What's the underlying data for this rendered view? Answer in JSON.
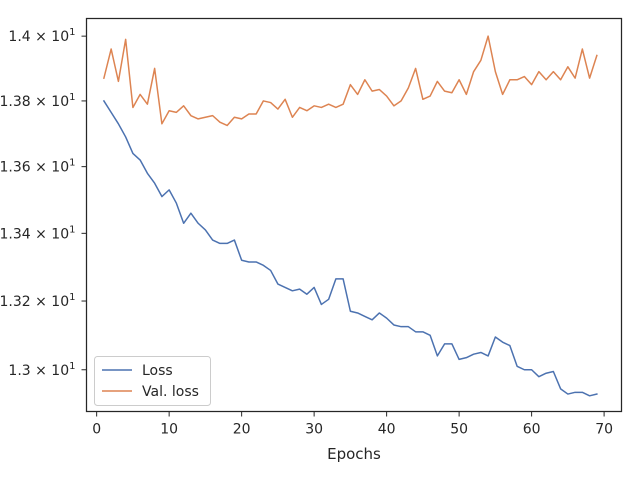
{
  "chart_data": {
    "type": "line",
    "title": "",
    "xlabel": "Epochs",
    "ylabel": "",
    "xlim": [
      -1.4,
      72.4
    ],
    "ylim": [
      12.88,
      14.055
    ],
    "x_ticks": [
      0,
      10,
      20,
      30,
      40,
      50,
      60,
      70
    ],
    "y_ticks": [
      {
        "value": 13.0,
        "mantissa": "1.3",
        "exponent": "1"
      },
      {
        "value": 13.2,
        "mantissa": "1.32",
        "exponent": "1"
      },
      {
        "value": 13.4,
        "mantissa": "1.34",
        "exponent": "1"
      },
      {
        "value": 13.6,
        "mantissa": "1.36",
        "exponent": "1"
      },
      {
        "value": 13.8,
        "mantissa": "1.38",
        "exponent": "1"
      },
      {
        "value": 14.0,
        "mantissa": "1.4",
        "exponent": "1"
      }
    ],
    "y_scale": "log",
    "grid": false,
    "legend_position": "lower-left",
    "series": [
      {
        "name": "Loss",
        "color": "#4c72b0",
        "x": [
          1,
          2,
          3,
          4,
          5,
          6,
          7,
          8,
          9,
          10,
          11,
          12,
          13,
          14,
          15,
          16,
          17,
          18,
          19,
          20,
          21,
          22,
          23,
          24,
          25,
          26,
          27,
          28,
          29,
          30,
          31,
          32,
          33,
          34,
          35,
          36,
          37,
          38,
          39,
          40,
          41,
          42,
          43,
          44,
          45,
          46,
          47,
          48,
          49,
          50,
          51,
          52,
          53,
          54,
          55,
          56,
          57,
          58,
          59,
          60,
          61,
          62,
          63,
          64,
          65,
          66,
          67,
          68,
          69
        ],
        "values": [
          13.8,
          13.765,
          13.73,
          13.69,
          13.64,
          13.62,
          13.58,
          13.55,
          13.51,
          13.53,
          13.49,
          13.43,
          13.46,
          13.43,
          13.41,
          13.38,
          13.37,
          13.37,
          13.38,
          13.32,
          13.315,
          13.315,
          13.305,
          13.29,
          13.25,
          13.24,
          13.23,
          13.235,
          13.22,
          13.24,
          13.19,
          13.205,
          13.265,
          13.265,
          13.17,
          13.165,
          13.155,
          13.145,
          13.165,
          13.15,
          13.13,
          13.125,
          13.125,
          13.11,
          13.11,
          13.1,
          13.04,
          13.075,
          13.075,
          13.03,
          13.035,
          13.045,
          13.05,
          13.04,
          13.095,
          13.08,
          13.07,
          13.01,
          13.0,
          13.0,
          12.98,
          12.99,
          12.995,
          12.945,
          12.93,
          12.935,
          12.935,
          12.925,
          12.93
        ]
      },
      {
        "name": "Val. loss",
        "color": "#dd8452",
        "x": [
          1,
          2,
          3,
          4,
          5,
          6,
          7,
          8,
          9,
          10,
          11,
          12,
          13,
          14,
          15,
          16,
          17,
          18,
          19,
          20,
          21,
          22,
          23,
          24,
          25,
          26,
          27,
          28,
          29,
          30,
          31,
          32,
          33,
          34,
          35,
          36,
          37,
          38,
          39,
          40,
          41,
          42,
          43,
          44,
          45,
          46,
          47,
          48,
          49,
          50,
          51,
          52,
          53,
          54,
          55,
          56,
          57,
          58,
          59,
          60,
          61,
          62,
          63,
          64,
          65,
          66,
          67,
          68,
          69
        ],
        "values": [
          13.87,
          13.96,
          13.86,
          13.99,
          13.78,
          13.82,
          13.79,
          13.9,
          13.73,
          13.77,
          13.765,
          13.785,
          13.755,
          13.745,
          13.75,
          13.755,
          13.735,
          13.725,
          13.75,
          13.745,
          13.76,
          13.76,
          13.8,
          13.795,
          13.775,
          13.805,
          13.75,
          13.78,
          13.77,
          13.785,
          13.78,
          13.79,
          13.78,
          13.79,
          13.85,
          13.82,
          13.865,
          13.83,
          13.835,
          13.815,
          13.785,
          13.8,
          13.84,
          13.9,
          13.805,
          13.815,
          13.86,
          13.83,
          13.825,
          13.865,
          13.82,
          13.89,
          13.925,
          14.0,
          13.89,
          13.82,
          13.865,
          13.865,
          13.875,
          13.85,
          13.89,
          13.865,
          13.89,
          13.865,
          13.905,
          13.87,
          13.96,
          13.87,
          13.94
        ]
      }
    ]
  }
}
